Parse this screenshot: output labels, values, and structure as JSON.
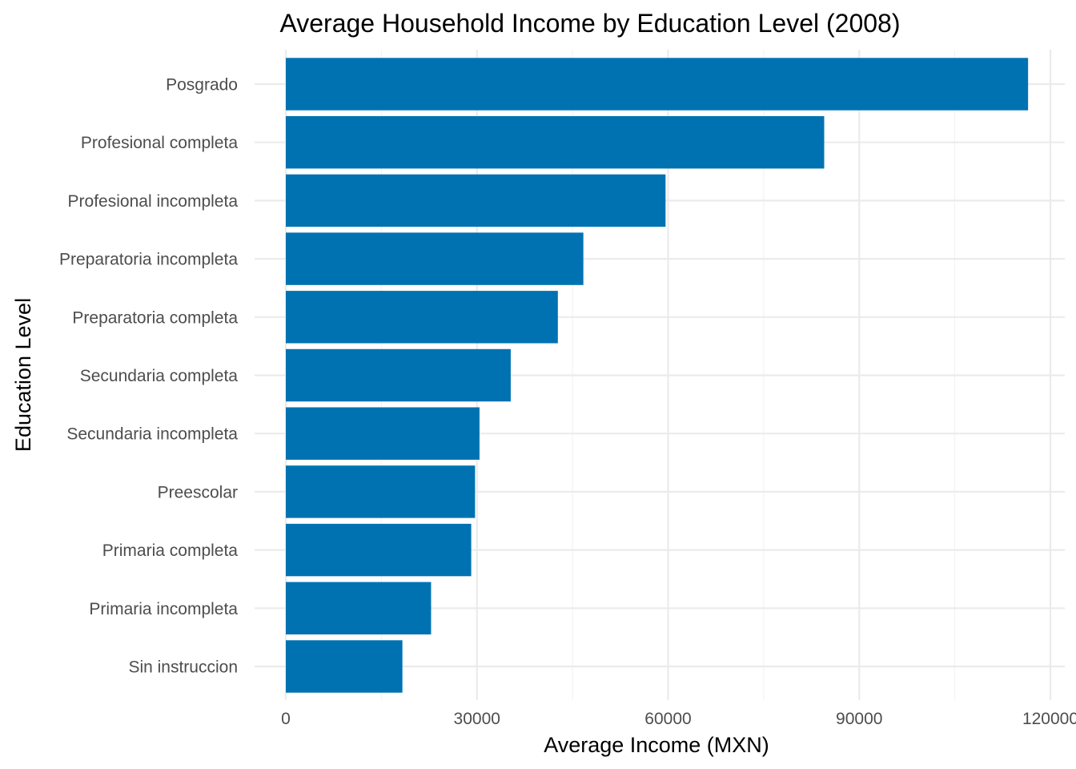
{
  "chart_data": {
    "type": "bar",
    "orientation": "horizontal",
    "title": "Average Household Income by Education Level (2008)",
    "xlabel": "Average Income (MXN)",
    "ylabel": "Education Level",
    "categories": [
      "Posgrado",
      "Profesional completa",
      "Profesional incompleta",
      "Preparatoria incompleta",
      "Preparatoria completa",
      "Secundaria completa",
      "Secundaria incompleta",
      "Preescolar",
      "Primaria completa",
      "Primaria incompleta",
      "Sin instruccion"
    ],
    "values": [
      116500,
      84500,
      59600,
      46700,
      42700,
      35300,
      30400,
      29700,
      29100,
      22800,
      18300
    ],
    "xlim": [
      0,
      120000
    ],
    "x_ticks": [
      0,
      30000,
      60000,
      90000,
      120000
    ],
    "x_tick_labels": [
      "0",
      "30000",
      "60000",
      "90000",
      "120000"
    ],
    "grid": true,
    "bar_color": "#0072B2"
  }
}
